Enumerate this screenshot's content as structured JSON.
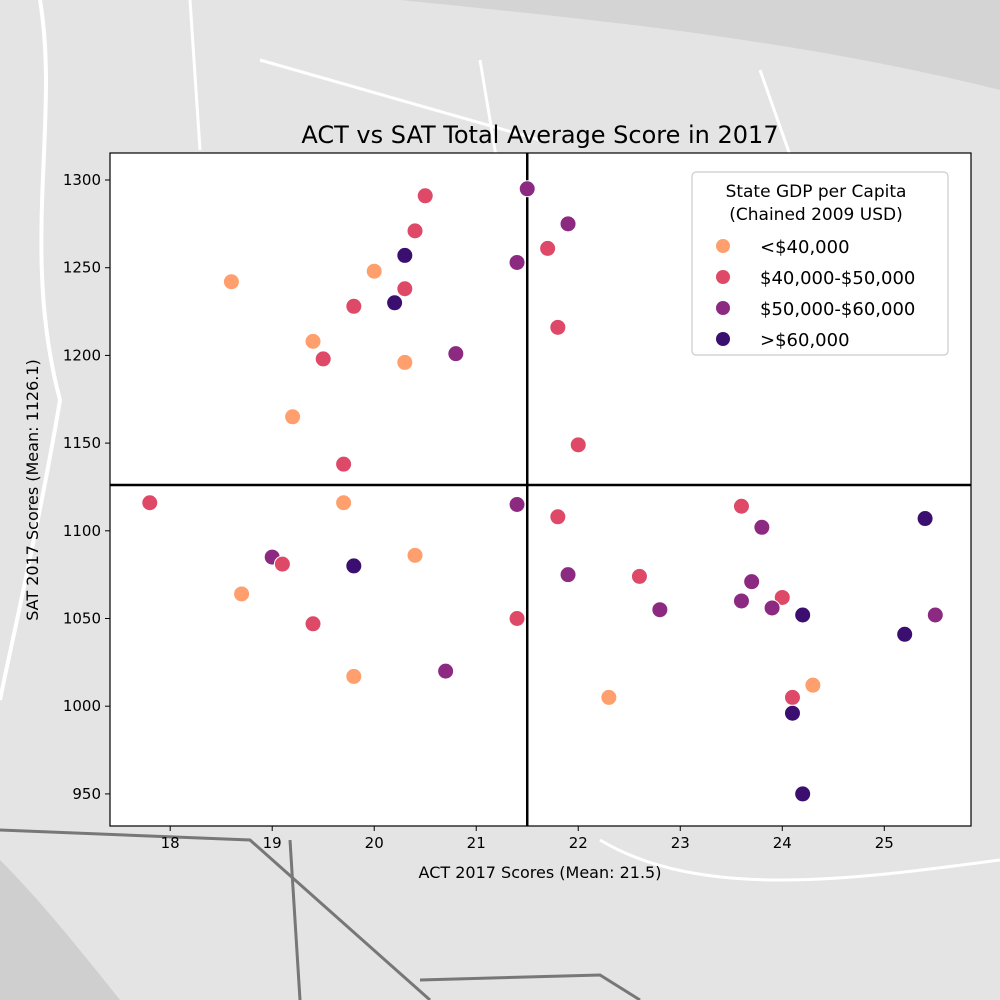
{
  "chart_data": {
    "type": "scatter",
    "title": "ACT vs SAT Total Average Score in 2017",
    "xlabel": "ACT 2017 Scores (Mean: 21.5)",
    "ylabel": "SAT 2017 Scores (Mean: 1126.1)",
    "xlim": [
      17.41,
      25.85
    ],
    "ylim": [
      931.7,
      1315.4
    ],
    "xticks": [
      18,
      19,
      20,
      21,
      22,
      23,
      24,
      25
    ],
    "yticks": [
      950,
      1000,
      1050,
      1100,
      1150,
      1200,
      1250,
      1300
    ],
    "mean_lines": {
      "x": 21.5,
      "y": 1126.1
    },
    "grid": false,
    "legend": {
      "title_line1": "State GDP per Capita",
      "title_line2": "(Chained 2009 USD)",
      "placement": "top-right",
      "entries": [
        {
          "label": "<$40,000",
          "color": "#fe9f6d"
        },
        {
          "label": "$40,000-$50,000",
          "color": "#de4968"
        },
        {
          "label": "$50,000-$60,000",
          "color": "#8c2981"
        },
        {
          "label": ">$60,000",
          "color": "#3b0f70"
        }
      ]
    },
    "points": [
      [
        18.6,
        1242,
        0
      ],
      [
        20.5,
        1291,
        1
      ],
      [
        21.5,
        1295,
        2
      ],
      [
        21.9,
        1275,
        2
      ],
      [
        20.4,
        1271,
        1
      ],
      [
        21.7,
        1261,
        1
      ],
      [
        20.3,
        1257,
        3
      ],
      [
        21.4,
        1253,
        2
      ],
      [
        20.0,
        1248,
        0
      ],
      [
        20.3,
        1238,
        1
      ],
      [
        20.2,
        1230,
        3
      ],
      [
        19.8,
        1228,
        1
      ],
      [
        21.8,
        1216,
        1
      ],
      [
        19.4,
        1208,
        0
      ],
      [
        20.8,
        1201,
        2
      ],
      [
        19.5,
        1198,
        1
      ],
      [
        20.3,
        1196,
        0
      ],
      [
        19.2,
        1165,
        0
      ],
      [
        22.0,
        1149,
        1
      ],
      [
        19.7,
        1138,
        1
      ],
      [
        17.8,
        1116,
        1
      ],
      [
        19.7,
        1116,
        0
      ],
      [
        21.4,
        1115,
        2
      ],
      [
        21.8,
        1108,
        1
      ],
      [
        23.6,
        1114,
        1
      ],
      [
        25.4,
        1107,
        3
      ],
      [
        23.8,
        1102,
        2
      ],
      [
        19.0,
        1085,
        2
      ],
      [
        19.1,
        1081,
        1
      ],
      [
        20.4,
        1086,
        0
      ],
      [
        19.8,
        1080,
        3
      ],
      [
        21.9,
        1075,
        2
      ],
      [
        22.6,
        1074,
        1
      ],
      [
        23.7,
        1071,
        2
      ],
      [
        18.7,
        1064,
        0
      ],
      [
        24.0,
        1062,
        1
      ],
      [
        23.6,
        1060,
        2
      ],
      [
        22.8,
        1055,
        2
      ],
      [
        23.9,
        1056,
        2
      ],
      [
        24.2,
        1052,
        3
      ],
      [
        25.5,
        1052,
        2
      ],
      [
        19.4,
        1047,
        1
      ],
      [
        21.4,
        1050,
        1
      ],
      [
        25.2,
        1041,
        3
      ],
      [
        20.7,
        1020,
        2
      ],
      [
        19.8,
        1017,
        0
      ],
      [
        24.3,
        1012,
        0
      ],
      [
        22.3,
        1005,
        0
      ],
      [
        24.1,
        1005,
        1
      ],
      [
        24.1,
        996,
        3
      ],
      [
        24.2,
        950,
        3
      ]
    ]
  }
}
